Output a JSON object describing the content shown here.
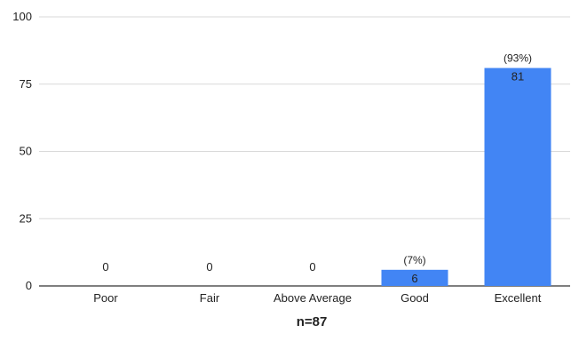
{
  "chart_data": {
    "type": "bar",
    "categories": [
      "Poor",
      "Fair",
      "Above Average",
      "Good",
      "Excellent"
    ],
    "values": [
      0,
      0,
      0,
      6,
      81
    ],
    "value_labels": [
      "0",
      "0",
      "0",
      "6",
      "81"
    ],
    "percent_labels": [
      "",
      "",
      "",
      "(7%)",
      "(93%)"
    ],
    "ylim": [
      0,
      100
    ],
    "yticks": [
      0,
      25,
      50,
      75,
      100
    ],
    "ytick_labels": [
      "0",
      "25",
      "50",
      "75",
      "100"
    ],
    "grid": true,
    "bar_color": "#4285f4",
    "grid_color": "#d9d9d9",
    "footer": "n=87"
  }
}
